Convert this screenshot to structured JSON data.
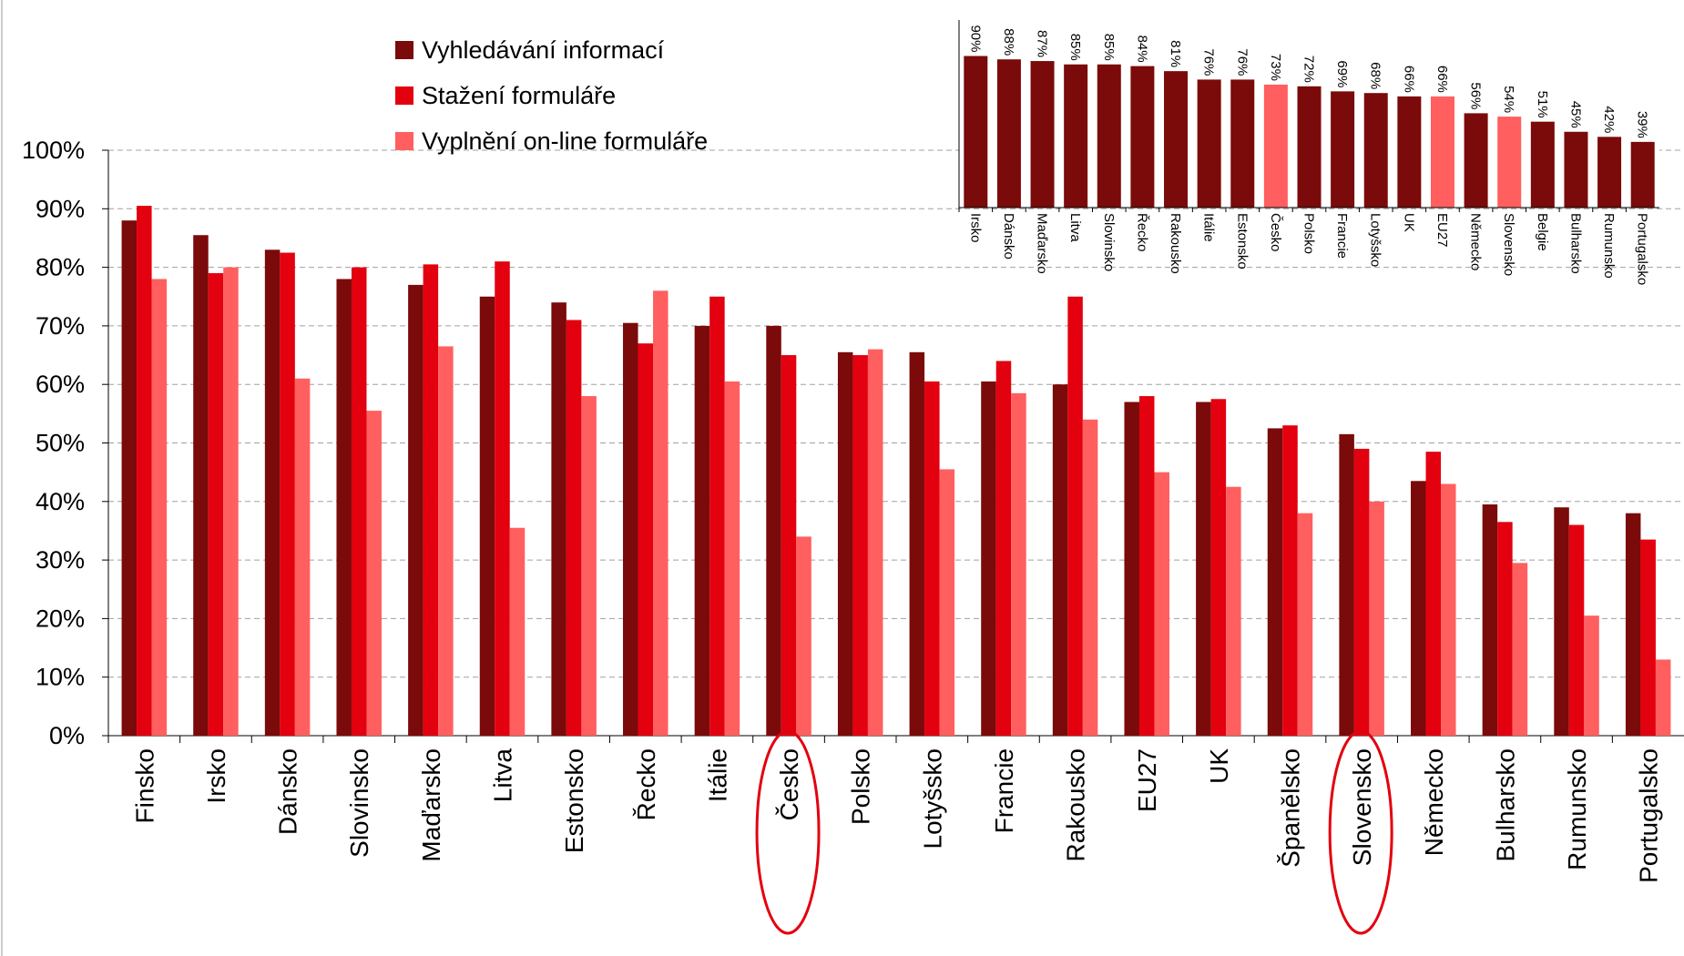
{
  "chart_data": [
    {
      "type": "bar",
      "categories": [
        "Finsko",
        "Irsko",
        "Dánsko",
        "Slovinsko",
        "Maďarsko",
        "Litva",
        "Estonsko",
        "Řecko",
        "Itálie",
        "Česko",
        "Polsko",
        "Lotyšsko",
        "Francie",
        "Rakousko",
        "EU27",
        "UK",
        "Španělsko",
        "Slovensko",
        "Německo",
        "Bulharsko",
        "Rumunsko",
        "Portugalsko"
      ],
      "series": [
        {
          "name": "Vyhledávání informací",
          "color": "#7b0a0a",
          "values": [
            88,
            85.5,
            83,
            78,
            77,
            75,
            74,
            70.5,
            70,
            70,
            65.5,
            65.5,
            60.5,
            60,
            57,
            57,
            52.5,
            51.5,
            43.5,
            39.5,
            39,
            38
          ]
        },
        {
          "name": "Stažení formuláře",
          "color": "#e3000f",
          "values": [
            90.5,
            79,
            82.5,
            80,
            80.5,
            81,
            71,
            67,
            75,
            65,
            65,
            60.5,
            64,
            75,
            58,
            57.5,
            53,
            49,
            48.5,
            36.5,
            36,
            33.5
          ]
        },
        {
          "name": "Vyplnění on-line formuláře",
          "color": "#ff5f5f",
          "values": [
            78,
            80,
            61,
            55.5,
            66.5,
            35.5,
            58,
            76,
            60.5,
            34,
            66,
            45.5,
            58.5,
            54,
            45,
            42.5,
            38,
            40,
            43,
            29.5,
            20.5,
            13
          ]
        }
      ],
      "ylim": [
        0,
        100
      ],
      "yticks": [
        {
          "value": 0,
          "label": "0%"
        },
        {
          "value": 10,
          "label": "10%"
        },
        {
          "value": 20,
          "label": "20%"
        },
        {
          "value": 30,
          "label": "30%"
        },
        {
          "value": 40,
          "label": "40%"
        },
        {
          "value": 50,
          "label": "50%"
        },
        {
          "value": 60,
          "label": "60%"
        },
        {
          "value": 70,
          "label": "70%"
        },
        {
          "value": 80,
          "label": "80%"
        },
        {
          "value": 90,
          "label": "90%"
        },
        {
          "value": 100,
          "label": "100%"
        }
      ],
      "grid": true,
      "legend": "top-left"
    },
    {
      "type": "bar",
      "categories": [
        "Irsko",
        "Dánsko",
        "Maďarsko",
        "Litva",
        "Slovinsko",
        "Řecko",
        "Rakousko",
        "Itálie",
        "Estonsko",
        "Česko",
        "Polsko",
        "Francie",
        "Lotyšsko",
        "UK",
        "EU27",
        "Německo",
        "Slovensko",
        "Belgie",
        "Bulharsko",
        "Rumunsko",
        "Portugalsko"
      ],
      "values": [
        90,
        88,
        87,
        85,
        85,
        84,
        81,
        76,
        76,
        73,
        72,
        69,
        68,
        66,
        66,
        56,
        54,
        51,
        45,
        42,
        39
      ],
      "value_labels": [
        "90%",
        "88%",
        "87%",
        "85%",
        "85%",
        "84%",
        "81%",
        "76%",
        "76%",
        "73%",
        "72%",
        "69%",
        "68%",
        "66%",
        "66%",
        "56%",
        "54%",
        "51%",
        "45%",
        "42%",
        "39%"
      ],
      "colors": [
        "#7b0a0a",
        "#7b0a0a",
        "#7b0a0a",
        "#7b0a0a",
        "#7b0a0a",
        "#7b0a0a",
        "#7b0a0a",
        "#7b0a0a",
        "#7b0a0a",
        "#ff5f5f",
        "#7b0a0a",
        "#7b0a0a",
        "#7b0a0a",
        "#7b0a0a",
        "#ff5f5f",
        "#7b0a0a",
        "#ff5f5f",
        "#7b0a0a",
        "#7b0a0a",
        "#7b0a0a",
        "#7b0a0a"
      ]
    }
  ]
}
